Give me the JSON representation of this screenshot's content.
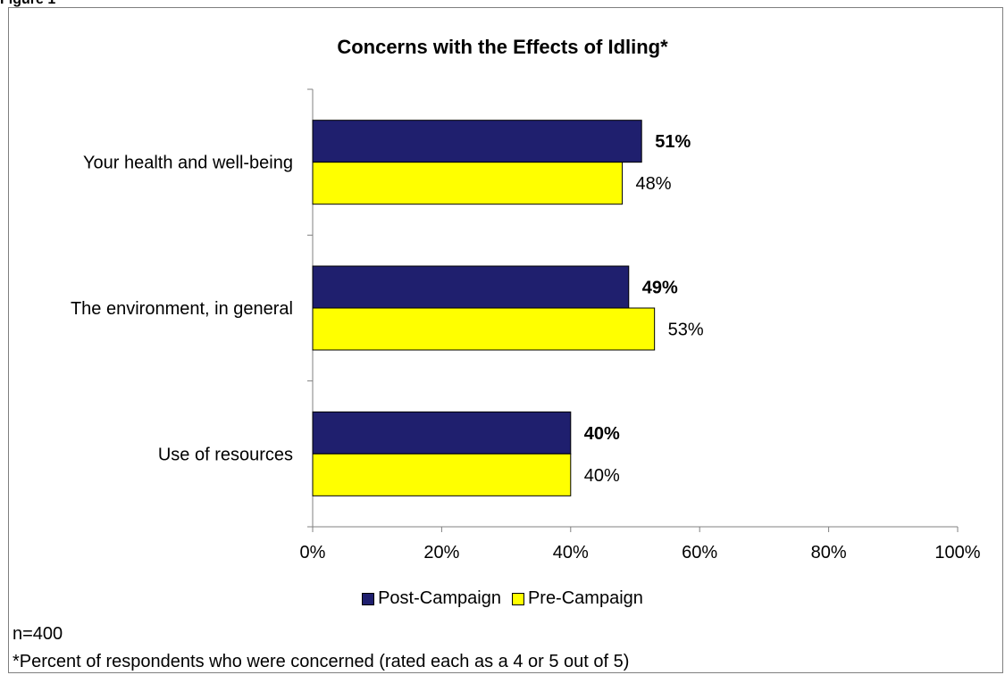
{
  "figure_label": "Figure 1",
  "colors": {
    "post": "#1f1f6e",
    "pre": "#ffff00",
    "axis": "#808080"
  },
  "notes": {
    "sample": "n=400",
    "footnote": "*Percent of respondents who were concerned (rated each as a 4 or 5 out of 5)"
  },
  "chart_data": {
    "type": "bar",
    "orientation": "horizontal",
    "title": "Concerns with the Effects of Idling*",
    "xlabel": "",
    "ylabel": "",
    "xlim": [
      0,
      100
    ],
    "x_ticks": [
      "0%",
      "20%",
      "40%",
      "60%",
      "80%",
      "100%"
    ],
    "categories": [
      "Your health and well-being",
      "The environment, in general",
      "Use of resources"
    ],
    "series": [
      {
        "name": "Post-Campaign",
        "values": [
          51,
          49,
          40
        ],
        "labels": [
          "51%",
          "49%",
          "40%"
        ],
        "bold_labels": true
      },
      {
        "name": "Pre-Campaign",
        "values": [
          48,
          53,
          40
        ],
        "labels": [
          "48%",
          "53%",
          "40%"
        ],
        "bold_labels": false
      }
    ],
    "grid": false,
    "legend_position": "bottom"
  }
}
